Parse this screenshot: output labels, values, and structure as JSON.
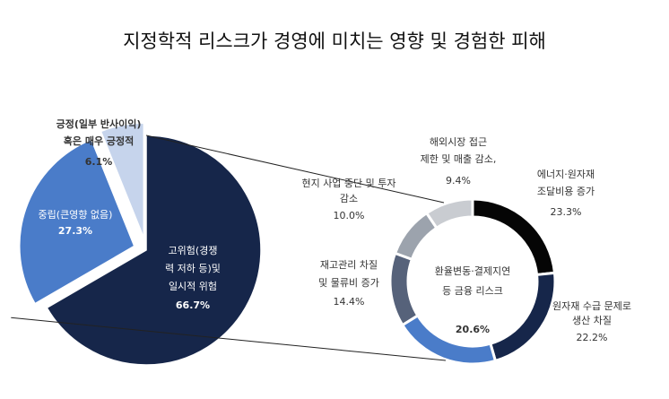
{
  "title": "지정학적 리스크가 경영에 미치는 영향 및 경험한 피해",
  "chart_data": [
    {
      "type": "pie",
      "slices": [
        {
          "label": [
            "고위험(경쟁",
            "력 저하 등)및",
            "일시적 위험"
          ],
          "value": 66.7,
          "value_label": "66.7%",
          "color": "#16264a"
        },
        {
          "label": [
            "중립(큰영향 없음)"
          ],
          "value": 27.3,
          "value_label": "27.3%",
          "color": "#4a7cc9"
        },
        {
          "label": [
            "긍정(일부 반사이익)",
            "혹은 매우 긍정적"
          ],
          "value": 6.1,
          "value_label": "6.1%",
          "color": "#c6d4ec"
        }
      ]
    },
    {
      "type": "pie",
      "subtype": "donut",
      "center_label": [
        "환율변동·결제지연",
        "등 금융 리스크"
      ],
      "slices": [
        {
          "label": [
            "에너지·원자재",
            "조달비용 증가"
          ],
          "value": 23.3,
          "value_label": "23.3%",
          "color": "#050505"
        },
        {
          "label": [
            "원자재 수급 문제로",
            "생산 차질"
          ],
          "value": 22.2,
          "value_label": "22.2%",
          "color": "#16264a"
        },
        {
          "label": [
            "환율변동·결제지연",
            "등 금융 리스크"
          ],
          "value": 20.6,
          "value_label": "20.6%",
          "color": "#4a7cc9"
        },
        {
          "label": [
            "재고관리 차질",
            "및 물류비 증가"
          ],
          "value": 14.4,
          "value_label": "14.4%",
          "color": "#56627a"
        },
        {
          "label": [
            "현지 사업 중단 및 투자",
            "감소"
          ],
          "value": 10.0,
          "value_label": "10.0%",
          "color": "#9ca3ad"
        },
        {
          "label": [
            "해외시장 접근",
            "제한 및 매출 감소,"
          ],
          "value": 9.4,
          "value_label": "9.4%",
          "color": "#c9ccd1"
        }
      ]
    }
  ]
}
